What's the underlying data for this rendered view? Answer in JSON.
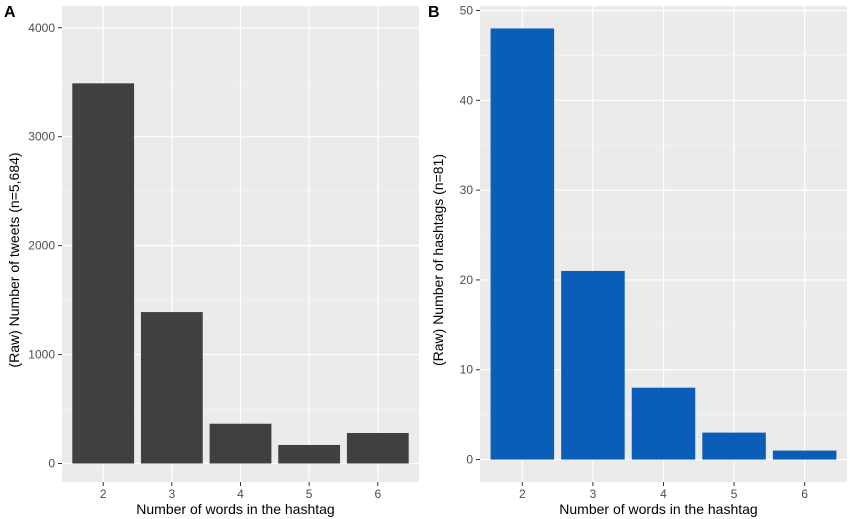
{
  "chart_data": [
    {
      "type": "bar",
      "panel_label": "A",
      "categories": [
        "2",
        "3",
        "4",
        "5",
        "6"
      ],
      "values": [
        3490,
        1390,
        365,
        170,
        280
      ],
      "xlabel": "Number of words in the hashtag",
      "ylabel": "(Raw) Number of tweets (n=5,684)",
      "ylim": [
        -170,
        4200
      ],
      "yticks": [
        "0",
        "1000",
        "2000",
        "3000",
        "4000"
      ],
      "bar_color": "#404040",
      "panel_background": "#ebebeb",
      "grid": true,
      "legend": "none"
    },
    {
      "type": "bar",
      "panel_label": "B",
      "categories": [
        "2",
        "3",
        "4",
        "5",
        "6"
      ],
      "values": [
        48,
        21,
        8,
        3,
        1
      ],
      "xlabel": "Number of words in the hashtag",
      "ylabel": "(Raw) Number of hashtags (n=81)",
      "ylim": [
        -2.5,
        50.5
      ],
      "yticks": [
        "0",
        "10",
        "20",
        "30",
        "40",
        "50"
      ],
      "bar_color": "#0b5eb8",
      "panel_background": "#ebebeb",
      "grid": true,
      "legend": "none"
    }
  ]
}
